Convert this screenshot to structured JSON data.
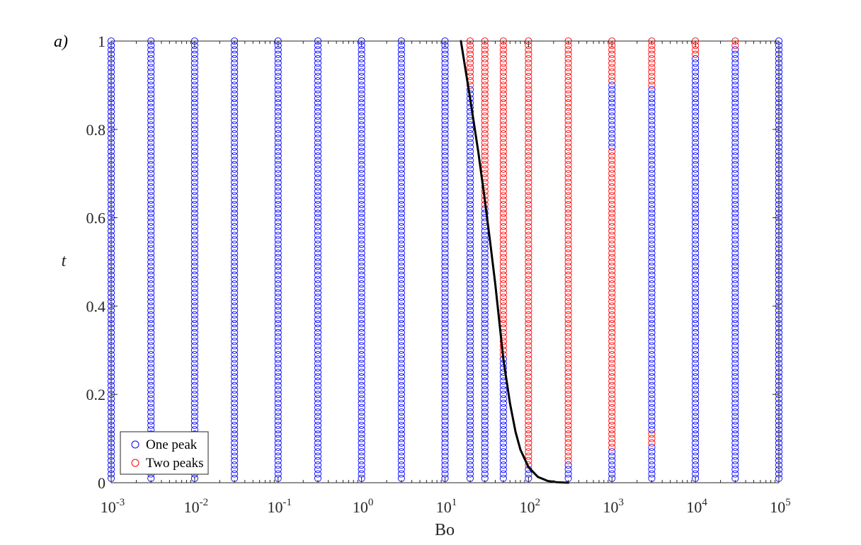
{
  "chart_data": {
    "type": "scatter",
    "panel_label": "a)",
    "xlabel": "Bo",
    "ylabel": "t",
    "xscale": "log",
    "xlim": [
      0.001,
      100000
    ],
    "ylim": [
      0,
      1
    ],
    "xticks": [
      {
        "value": 0.001,
        "base": "10",
        "exp": "-3"
      },
      {
        "value": 0.01,
        "base": "10",
        "exp": "-2"
      },
      {
        "value": 0.1,
        "base": "10",
        "exp": "-1"
      },
      {
        "value": 1,
        "base": "10",
        "exp": "0"
      },
      {
        "value": 10,
        "base": "10",
        "exp": "1"
      },
      {
        "value": 100,
        "base": "10",
        "exp": "2"
      },
      {
        "value": 1000,
        "base": "10",
        "exp": "3"
      },
      {
        "value": 10000,
        "base": "10",
        "exp": "4"
      },
      {
        "value": 100000,
        "base": "10",
        "exp": "5"
      }
    ],
    "yticks": [
      {
        "value": 0,
        "label": "0"
      },
      {
        "value": 0.2,
        "label": "0.2"
      },
      {
        "value": 0.4,
        "label": "0.4"
      },
      {
        "value": 0.6,
        "label": "0.6"
      },
      {
        "value": 0.8,
        "label": "0.8"
      },
      {
        "value": 1,
        "label": "1"
      }
    ],
    "legend": {
      "position": "bottom-left",
      "entries": [
        {
          "label": "One peak",
          "color": "#0000ff"
        },
        {
          "label": "Two peaks",
          "color": "#ff0000"
        }
      ]
    },
    "t_sampling": {
      "start": 0.01,
      "end": 1.0,
      "step": 0.01
    },
    "columns": [
      {
        "bo": 0.001,
        "two_peak_t_ranges": []
      },
      {
        "bo": 0.003,
        "two_peak_t_ranges": []
      },
      {
        "bo": 0.01,
        "two_peak_t_ranges": []
      },
      {
        "bo": 0.03,
        "two_peak_t_ranges": []
      },
      {
        "bo": 0.1,
        "two_peak_t_ranges": []
      },
      {
        "bo": 0.3,
        "two_peak_t_ranges": []
      },
      {
        "bo": 1,
        "two_peak_t_ranges": []
      },
      {
        "bo": 3,
        "two_peak_t_ranges": []
      },
      {
        "bo": 10,
        "two_peak_t_ranges": []
      },
      {
        "bo": 20,
        "two_peak_t_ranges": [
          [
            0.9,
            1.0
          ]
        ]
      },
      {
        "bo": 30,
        "two_peak_t_ranges": [
          [
            0.63,
            1.0
          ]
        ]
      },
      {
        "bo": 50,
        "two_peak_t_ranges": [
          [
            0.29,
            1.0
          ]
        ]
      },
      {
        "bo": 100,
        "two_peak_t_ranges": [
          [
            0.04,
            1.0
          ]
        ]
      },
      {
        "bo": 300,
        "two_peak_t_ranges": [
          [
            0.05,
            1.0
          ]
        ]
      },
      {
        "bo": 1000,
        "two_peak_t_ranges": [
          [
            0.08,
            0.75
          ],
          [
            0.91,
            1.0
          ]
        ]
      },
      {
        "bo": 3000,
        "two_peak_t_ranges": [
          [
            0.09,
            0.11
          ],
          [
            0.9,
            1.0
          ]
        ]
      },
      {
        "bo": 10000,
        "two_peak_t_ranges": [
          [
            0.97,
            1.0
          ]
        ]
      },
      {
        "bo": 30000,
        "two_peak_t_ranges": [
          [
            0.99,
            1.0
          ]
        ]
      },
      {
        "bo": 100000,
        "two_peak_t_ranges": []
      }
    ],
    "boundary_curve": {
      "color": "#000000",
      "points": [
        {
          "bo": 15.5,
          "t": 1.0
        },
        {
          "bo": 20,
          "t": 0.87
        },
        {
          "bo": 25,
          "t": 0.75
        },
        {
          "bo": 30,
          "t": 0.64
        },
        {
          "bo": 35,
          "t": 0.54
        },
        {
          "bo": 40,
          "t": 0.45
        },
        {
          "bo": 45,
          "t": 0.36
        },
        {
          "bo": 50,
          "t": 0.28
        },
        {
          "bo": 60,
          "t": 0.18
        },
        {
          "bo": 70,
          "t": 0.115
        },
        {
          "bo": 80,
          "t": 0.075
        },
        {
          "bo": 100,
          "t": 0.035
        },
        {
          "bo": 130,
          "t": 0.013
        },
        {
          "bo": 170,
          "t": 0.004
        },
        {
          "bo": 220,
          "t": 0.001
        },
        {
          "bo": 300,
          "t": 0.0
        }
      ]
    }
  }
}
